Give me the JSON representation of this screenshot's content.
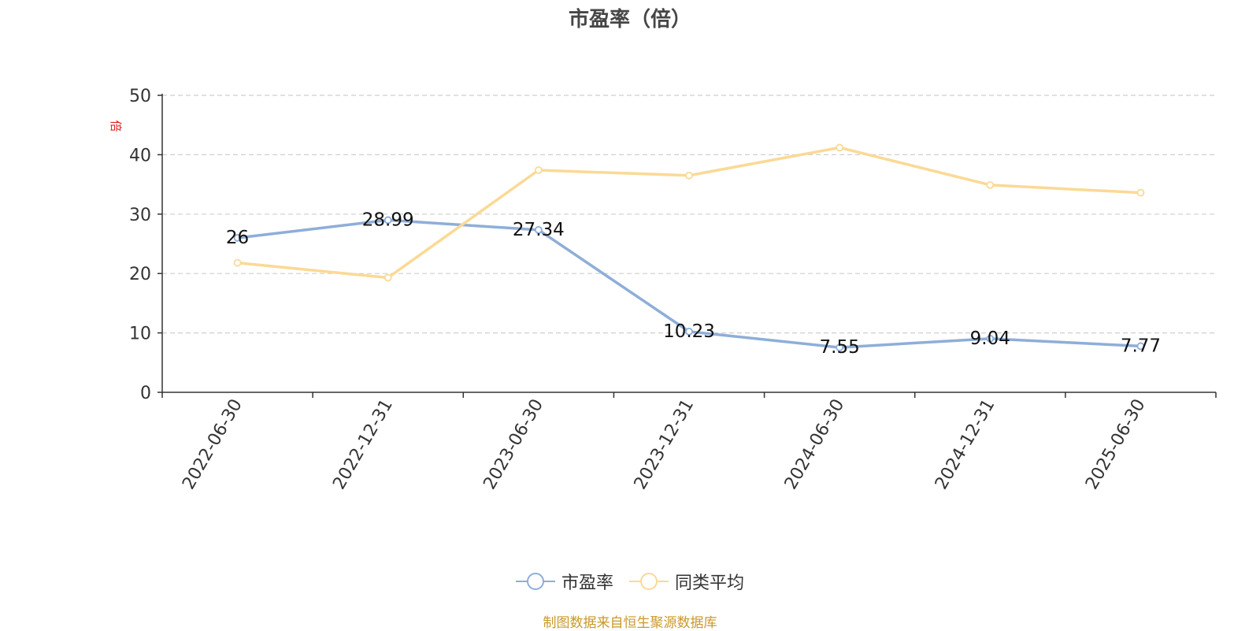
{
  "chart_data": {
    "type": "line",
    "title": "市盈率（倍）",
    "ylabel": "倍",
    "xlabel": "",
    "ylim": [
      0,
      50
    ],
    "yticks": [
      0,
      10,
      20,
      30,
      40,
      50
    ],
    "grid": true,
    "legend_position": "bottom",
    "categories": [
      "2022-06-30",
      "2022-12-31",
      "2023-06-30",
      "2023-12-31",
      "2024-06-30",
      "2024-12-31",
      "2025-06-30"
    ],
    "series": [
      {
        "name": "市盈率",
        "color": "#8eaed8",
        "values": [
          26,
          28.99,
          27.34,
          10.23,
          7.55,
          9.04,
          7.77
        ],
        "show_labels": true,
        "labels": [
          "26",
          "28.99",
          "27.34",
          "10.23",
          "7.55",
          "9.04",
          "7.77"
        ]
      },
      {
        "name": "同类平均",
        "color": "#fbd995",
        "values": [
          21.8,
          19.3,
          37.4,
          36.5,
          41.2,
          34.9,
          33.6
        ],
        "show_labels": false
      }
    ],
    "source": "制图数据来自恒生聚源数据库"
  }
}
